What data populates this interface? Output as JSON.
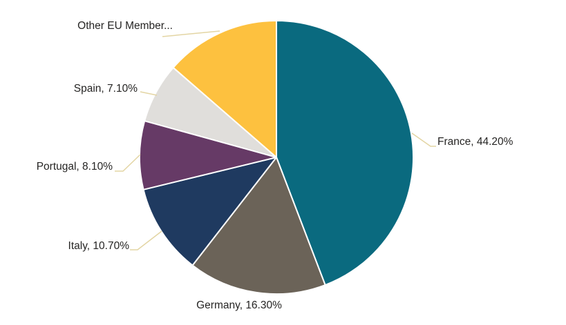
{
  "chart_data": {
    "type": "pie",
    "title": "",
    "unit": "%",
    "legend": "none",
    "start_angle_deg": 0,
    "direction": "clockwise",
    "slices": [
      {
        "name": "France",
        "value": 44.2,
        "display_label": "France, 44.20%",
        "color": "#0A6A7F"
      },
      {
        "name": "Germany",
        "value": 16.3,
        "display_label": "Germany, 16.30%",
        "color": "#6B6358"
      },
      {
        "name": "Italy",
        "value": 10.7,
        "display_label": "Italy, 10.70%",
        "color": "#1F3A60"
      },
      {
        "name": "Portugal",
        "value": 8.1,
        "display_label": "Portugal, 8.10%",
        "color": "#663A66"
      },
      {
        "name": "Spain",
        "value": 7.1,
        "display_label": "Spain, 7.10%",
        "color": "#E0DEDB"
      },
      {
        "name": "Other EU Member",
        "value": 13.6,
        "display_label": "Other EU Member...",
        "color": "#FDC13F"
      }
    ],
    "label_style": {
      "color": "#252423",
      "leader_line_color": "#E3D5A3"
    }
  }
}
